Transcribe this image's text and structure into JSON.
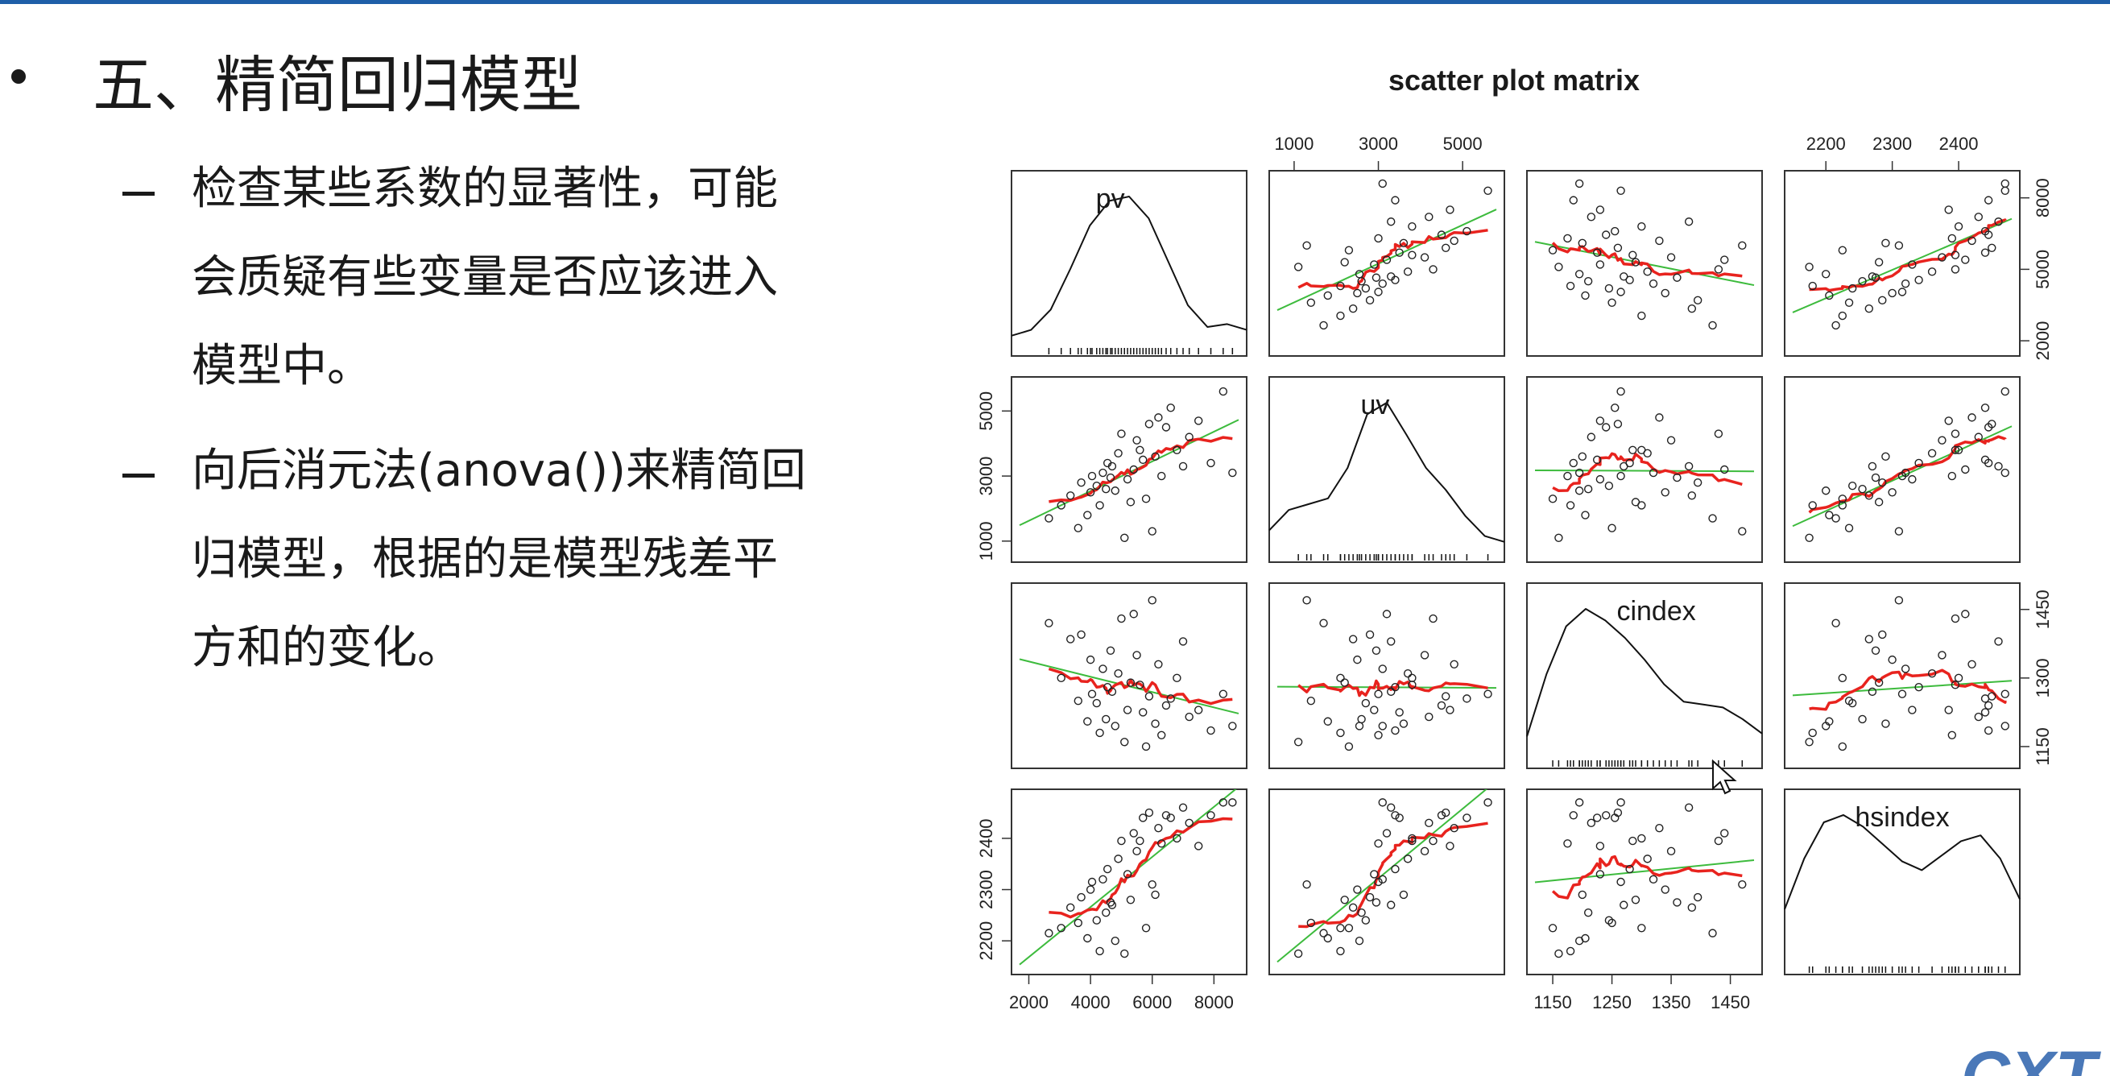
{
  "slide": {
    "heading": "五、精简回归模型",
    "bullets": [
      {
        "lines": [
          "检查某些系数的显著性，可能",
          "会质疑有些变量是否应该进入",
          "模型中。"
        ]
      },
      {
        "lines": [
          "向后消元法(anova())来精简回",
          "归模型，根据的是模型残差平",
          "方和的变化。"
        ]
      }
    ]
  },
  "logo": {
    "text": "CXT"
  },
  "colors": {
    "accent_rule": "#1f5fa8",
    "smoother": "#e8231e",
    "fit_line": "#3dbb3d",
    "points": "#222222",
    "logo": "#4a78b8"
  },
  "chart_data": {
    "type": "scatter",
    "subtype": "scatterplot-matrix",
    "title": "scatter plot matrix",
    "variables": [
      "pv",
      "uv",
      "cindex",
      "hsindex"
    ],
    "ranges": {
      "pv": [
        1700,
        8800
      ],
      "uv": [
        600,
        5800
      ],
      "cindex": [
        1120,
        1490
      ],
      "hsindex": [
        2150,
        2480
      ]
    },
    "axis_ticks": {
      "pv": [
        "2000",
        "4000",
        "6000",
        "8000"
      ],
      "uv": [
        "1000",
        "3000",
        "5000"
      ],
      "cindex": [
        "1150",
        "1250",
        "1350",
        "1450"
      ],
      "hsindex": [
        "2200",
        "2300",
        "2400"
      ]
    },
    "axes": {
      "top": {
        "uv": [
          "1000",
          "3000",
          "5000"
        ],
        "hsindex": [
          "2200",
          "2300",
          "2400"
        ]
      },
      "bottom": {
        "pv": [
          "2000",
          "4000",
          "6000",
          "8000"
        ],
        "cindex": [
          "1150",
          "1250",
          "1350",
          "1450"
        ]
      },
      "left": {
        "uv": [
          "1000",
          "3000",
          "5000"
        ],
        "hsindex": [
          "2200",
          "2300",
          "2400"
        ]
      },
      "right": {
        "pv": [
          "2000",
          "5000",
          "8000"
        ],
        "cindex": [
          "1150",
          "1300",
          "1450"
        ]
      }
    },
    "observations": {
      "pv": [
        2650,
        3050,
        3350,
        3600,
        3700,
        3900,
        4000,
        4050,
        4200,
        4300,
        4400,
        4500,
        4550,
        4650,
        4700,
        4800,
        4900,
        5000,
        5100,
        5200,
        5300,
        5400,
        5500,
        5600,
        5700,
        5800,
        5900,
        6000,
        6100,
        6200,
        6300,
        6450,
        6600,
        6800,
        7000,
        7200,
        7500,
        7900,
        8300,
        8600
      ],
      "uv": [
        1700,
        2100,
        2400,
        1400,
        2800,
        1800,
        2500,
        3000,
        2700,
        2100,
        3100,
        2600,
        3400,
        2950,
        3300,
        2550,
        3700,
        4300,
        1100,
        2900,
        2200,
        3200,
        4100,
        3800,
        3500,
        2300,
        4600,
        1300,
        3600,
        4800,
        3000,
        4500,
        5100,
        3800,
        3300,
        4200,
        4700,
        3400,
        5600,
        3100
      ],
      "cindex": [
        1420,
        1300,
        1385,
        1250,
        1395,
        1205,
        1340,
        1265,
        1245,
        1180,
        1320,
        1210,
        1280,
        1360,
        1270,
        1195,
        1310,
        1430,
        1160,
        1230,
        1290,
        1440,
        1350,
        1285,
        1225,
        1150,
        1260,
        1470,
        1200,
        1330,
        1175,
        1240,
        1255,
        1300,
        1380,
        1215,
        1230,
        1185,
        1265,
        1195
      ],
      "hsindex": [
        2215,
        2225,
        2265,
        2235,
        2285,
        2205,
        2300,
        2315,
        2240,
        2180,
        2320,
        2255,
        2340,
        2275,
        2270,
        2200,
        2360,
        2395,
        2175,
        2330,
        2280,
        2410,
        2375,
        2395,
        2440,
        2225,
        2450,
        2310,
        2290,
        2420,
        2390,
        2445,
        2440,
        2400,
        2460,
        2430,
        2385,
        2445,
        2470,
        2470
      ]
    },
    "diagonal_density": {
      "pv": [
        0.04,
        0.08,
        0.22,
        0.5,
        0.8,
        0.97,
        1.0,
        0.85,
        0.55,
        0.25,
        0.1,
        0.12,
        0.08
      ],
      "uv": [
        0.12,
        0.26,
        0.3,
        0.34,
        0.55,
        0.92,
        1.0,
        0.78,
        0.55,
        0.4,
        0.22,
        0.08,
        0.04
      ],
      "cindex": [
        0.12,
        0.55,
        0.88,
        1.0,
        0.92,
        0.8,
        0.65,
        0.48,
        0.36,
        0.34,
        0.32,
        0.24,
        0.14
      ],
      "hsindex": [
        0.35,
        0.7,
        0.95,
        1.0,
        0.92,
        0.8,
        0.68,
        0.62,
        0.72,
        0.82,
        0.86,
        0.7,
        0.42
      ]
    },
    "legend": "none",
    "grid": false,
    "fit_lines": [
      "linear regression (green)",
      "loess smoother (red)"
    ]
  }
}
